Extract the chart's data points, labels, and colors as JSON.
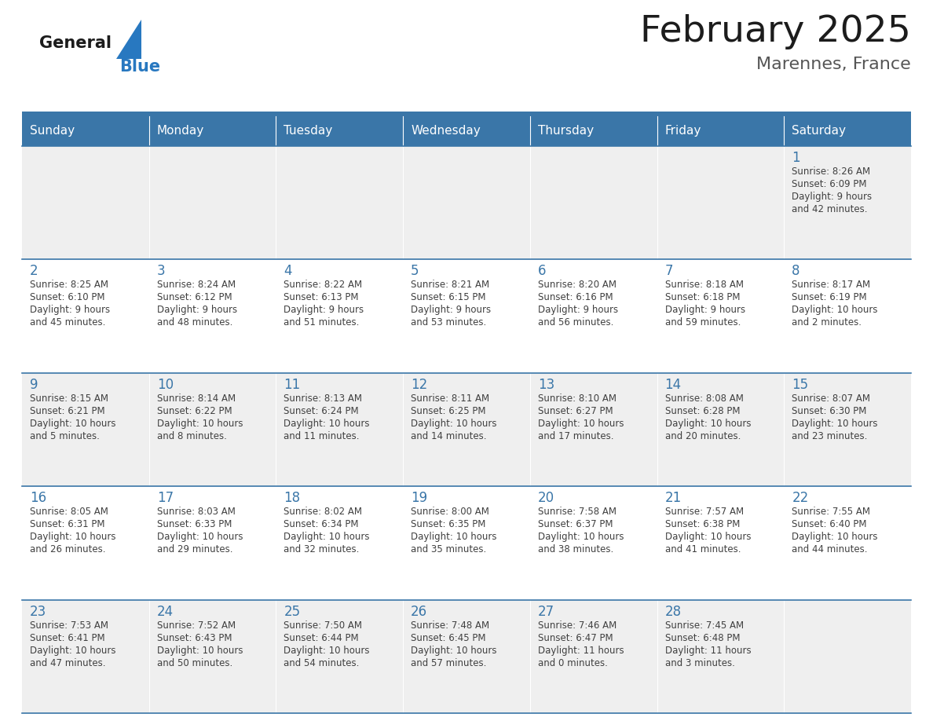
{
  "title": "February 2025",
  "subtitle": "Marennes, France",
  "days_of_week": [
    "Sunday",
    "Monday",
    "Tuesday",
    "Wednesday",
    "Thursday",
    "Friday",
    "Saturday"
  ],
  "header_bg": "#3A76A8",
  "header_text": "#FFFFFF",
  "row_bg_odd": "#EFEFEF",
  "row_bg_even": "#FFFFFF",
  "border_color": "#3A76A8",
  "day_number_color": "#3A76A8",
  "text_color": "#404040",
  "calendar_data": [
    [
      null,
      null,
      null,
      null,
      null,
      null,
      {
        "day": 1,
        "sunrise": "8:26 AM",
        "sunset": "6:09 PM",
        "daylight": "9 hours",
        "daylight2": "and 42 minutes."
      }
    ],
    [
      {
        "day": 2,
        "sunrise": "8:25 AM",
        "sunset": "6:10 PM",
        "daylight": "9 hours",
        "daylight2": "and 45 minutes."
      },
      {
        "day": 3,
        "sunrise": "8:24 AM",
        "sunset": "6:12 PM",
        "daylight": "9 hours",
        "daylight2": "and 48 minutes."
      },
      {
        "day": 4,
        "sunrise": "8:22 AM",
        "sunset": "6:13 PM",
        "daylight": "9 hours",
        "daylight2": "and 51 minutes."
      },
      {
        "day": 5,
        "sunrise": "8:21 AM",
        "sunset": "6:15 PM",
        "daylight": "9 hours",
        "daylight2": "and 53 minutes."
      },
      {
        "day": 6,
        "sunrise": "8:20 AM",
        "sunset": "6:16 PM",
        "daylight": "9 hours",
        "daylight2": "and 56 minutes."
      },
      {
        "day": 7,
        "sunrise": "8:18 AM",
        "sunset": "6:18 PM",
        "daylight": "9 hours",
        "daylight2": "and 59 minutes."
      },
      {
        "day": 8,
        "sunrise": "8:17 AM",
        "sunset": "6:19 PM",
        "daylight": "10 hours",
        "daylight2": "and 2 minutes."
      }
    ],
    [
      {
        "day": 9,
        "sunrise": "8:15 AM",
        "sunset": "6:21 PM",
        "daylight": "10 hours",
        "daylight2": "and 5 minutes."
      },
      {
        "day": 10,
        "sunrise": "8:14 AM",
        "sunset": "6:22 PM",
        "daylight": "10 hours",
        "daylight2": "and 8 minutes."
      },
      {
        "day": 11,
        "sunrise": "8:13 AM",
        "sunset": "6:24 PM",
        "daylight": "10 hours",
        "daylight2": "and 11 minutes."
      },
      {
        "day": 12,
        "sunrise": "8:11 AM",
        "sunset": "6:25 PM",
        "daylight": "10 hours",
        "daylight2": "and 14 minutes."
      },
      {
        "day": 13,
        "sunrise": "8:10 AM",
        "sunset": "6:27 PM",
        "daylight": "10 hours",
        "daylight2": "and 17 minutes."
      },
      {
        "day": 14,
        "sunrise": "8:08 AM",
        "sunset": "6:28 PM",
        "daylight": "10 hours",
        "daylight2": "and 20 minutes."
      },
      {
        "day": 15,
        "sunrise": "8:07 AM",
        "sunset": "6:30 PM",
        "daylight": "10 hours",
        "daylight2": "and 23 minutes."
      }
    ],
    [
      {
        "day": 16,
        "sunrise": "8:05 AM",
        "sunset": "6:31 PM",
        "daylight": "10 hours",
        "daylight2": "and 26 minutes."
      },
      {
        "day": 17,
        "sunrise": "8:03 AM",
        "sunset": "6:33 PM",
        "daylight": "10 hours",
        "daylight2": "and 29 minutes."
      },
      {
        "day": 18,
        "sunrise": "8:02 AM",
        "sunset": "6:34 PM",
        "daylight": "10 hours",
        "daylight2": "and 32 minutes."
      },
      {
        "day": 19,
        "sunrise": "8:00 AM",
        "sunset": "6:35 PM",
        "daylight": "10 hours",
        "daylight2": "and 35 minutes."
      },
      {
        "day": 20,
        "sunrise": "7:58 AM",
        "sunset": "6:37 PM",
        "daylight": "10 hours",
        "daylight2": "and 38 minutes."
      },
      {
        "day": 21,
        "sunrise": "7:57 AM",
        "sunset": "6:38 PM",
        "daylight": "10 hours",
        "daylight2": "and 41 minutes."
      },
      {
        "day": 22,
        "sunrise": "7:55 AM",
        "sunset": "6:40 PM",
        "daylight": "10 hours",
        "daylight2": "and 44 minutes."
      }
    ],
    [
      {
        "day": 23,
        "sunrise": "7:53 AM",
        "sunset": "6:41 PM",
        "daylight": "10 hours",
        "daylight2": "and 47 minutes."
      },
      {
        "day": 24,
        "sunrise": "7:52 AM",
        "sunset": "6:43 PM",
        "daylight": "10 hours",
        "daylight2": "and 50 minutes."
      },
      {
        "day": 25,
        "sunrise": "7:50 AM",
        "sunset": "6:44 PM",
        "daylight": "10 hours",
        "daylight2": "and 54 minutes."
      },
      {
        "day": 26,
        "sunrise": "7:48 AM",
        "sunset": "6:45 PM",
        "daylight": "10 hours",
        "daylight2": "and 57 minutes."
      },
      {
        "day": 27,
        "sunrise": "7:46 AM",
        "sunset": "6:47 PM",
        "daylight": "11 hours",
        "daylight2": "and 0 minutes."
      },
      {
        "day": 28,
        "sunrise": "7:45 AM",
        "sunset": "6:48 PM",
        "daylight": "11 hours",
        "daylight2": "and 3 minutes."
      },
      null
    ]
  ]
}
